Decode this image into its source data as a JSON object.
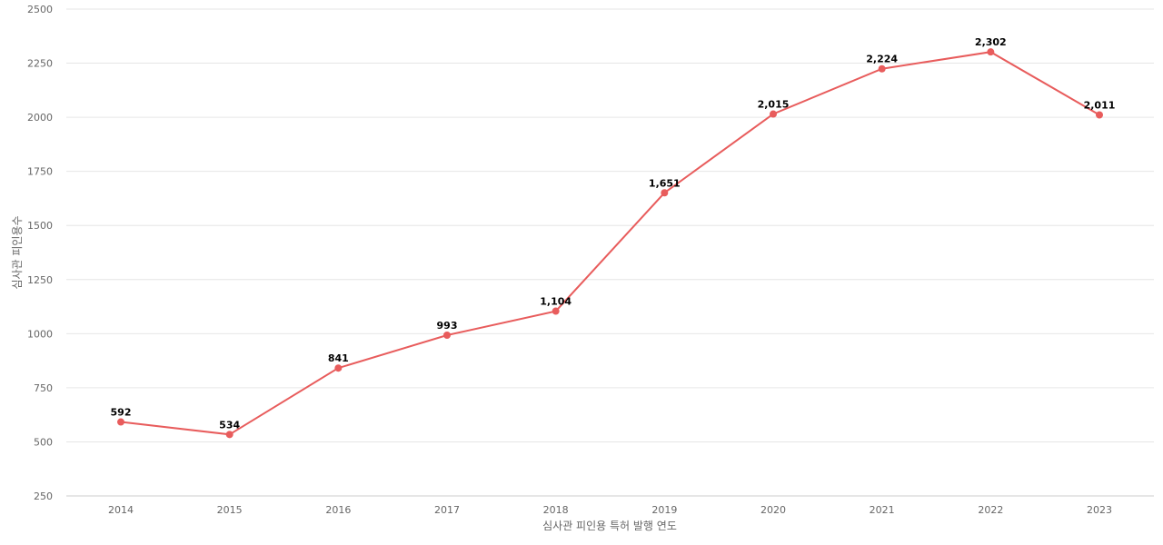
{
  "chart_data": {
    "type": "line",
    "categories": [
      "2014",
      "2015",
      "2016",
      "2017",
      "2018",
      "2019",
      "2020",
      "2021",
      "2022",
      "2023"
    ],
    "series": [
      {
        "values": [
          592,
          534,
          841,
          993,
          1104,
          1651,
          2015,
          2224,
          2302,
          2011
        ],
        "data_labels": [
          "592",
          "534",
          "841",
          "993",
          "1,104",
          "1,651",
          "2,015",
          "2,224",
          "2,302",
          "2,011"
        ],
        "color": "#e85c5c"
      }
    ],
    "title": "",
    "xlabel": "심사관 피인용 특허 발행 연도",
    "ylabel": "심사관 피인용수",
    "ylim": [
      250,
      2500
    ],
    "yticks": [
      "250",
      "500",
      "750",
      "1000",
      "1250",
      "1500",
      "1750",
      "2000",
      "2250",
      "2500"
    ],
    "grid": true,
    "legend": "none"
  }
}
